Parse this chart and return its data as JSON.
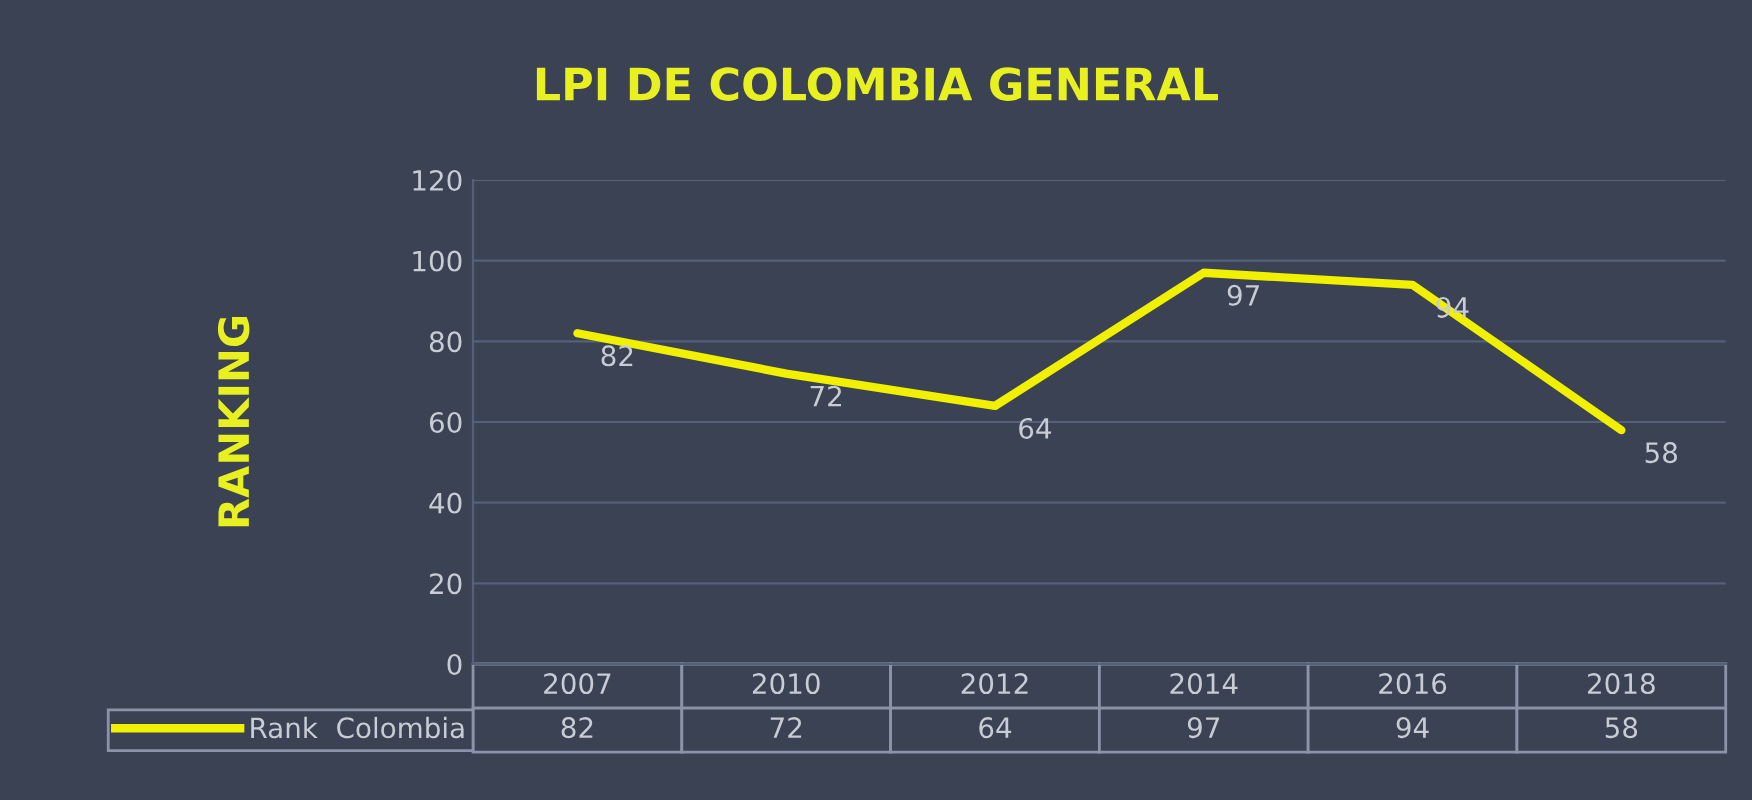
{
  "chart_data": {
    "type": "line",
    "title": "LPI DE COLOMBIA GENERAL",
    "ylabel": "RANKING",
    "categories": [
      "2007",
      "2010",
      "2012",
      "2014",
      "2016",
      "2018"
    ],
    "series": [
      {
        "name": "Rank  Colombia",
        "color": "#f0f000",
        "values": [
          82,
          72,
          64,
          97,
          94,
          58
        ]
      }
    ],
    "annotations": [
      {
        "text": "82",
        "x": "2007",
        "y": 82
      },
      {
        "text": "72",
        "x": "2010",
        "y": 72
      },
      {
        "text": "64",
        "x": "2012",
        "y": 64
      },
      {
        "text": "97",
        "x": "2014",
        "y": 97
      },
      {
        "text": "94",
        "x": "2016",
        "y": 94
      },
      {
        "text": "58",
        "x": "2018",
        "y": 58
      }
    ],
    "ylim": [
      0,
      120
    ],
    "yticks": [
      0,
      20,
      40,
      60,
      80,
      100,
      120
    ],
    "grid": "y",
    "legend": "bottom",
    "data_labels": true,
    "marker": "none",
    "line_style": "solid"
  }
}
